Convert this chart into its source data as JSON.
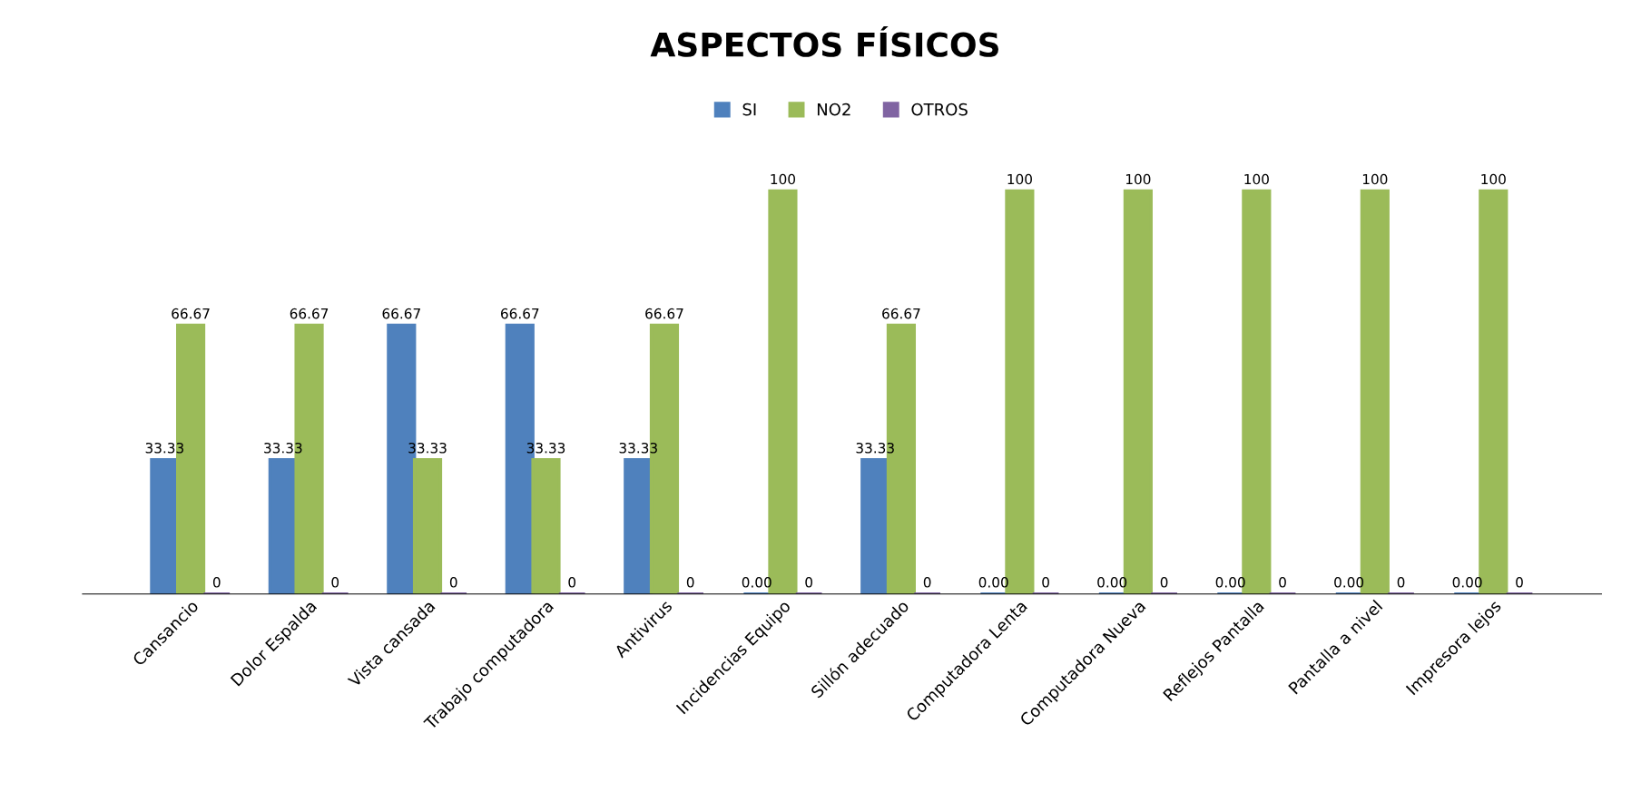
{
  "chart_data": {
    "type": "bar",
    "title": "ASPECTOS FÍSICOS",
    "categories": [
      "Cansancio",
      "Dolor Espalda",
      "Vista cansada",
      "Trabajo computadora",
      "Antivirus",
      "Incidencias Equipo",
      "Sillón adecuado",
      "Computadora Lenta",
      "Computadora Nueva",
      "Reflejos Pantalla",
      "Pantalla a nivel",
      "Impresora lejos"
    ],
    "series": [
      {
        "name": "SI",
        "color": "#4f81bd",
        "values": [
          33.33,
          33.33,
          66.67,
          66.67,
          33.33,
          0,
          33.33,
          0,
          0,
          0,
          0,
          0
        ],
        "value_labels": [
          "33.33",
          "33.33",
          "66.67",
          "66.67",
          "33.33",
          "0.00",
          "33.33",
          "0.00",
          "0.00",
          "0.00",
          "0.00",
          "0.00"
        ]
      },
      {
        "name": "NO2",
        "color": "#9bbb59",
        "values": [
          66.67,
          66.67,
          33.33,
          33.33,
          66.67,
          100,
          66.67,
          100,
          100,
          100,
          100,
          100
        ],
        "value_labels": [
          "66.67",
          "66.67",
          "33.33",
          "33.33",
          "66.67",
          "100",
          "66.67",
          "100",
          "100",
          "100",
          "100",
          "100"
        ]
      },
      {
        "name": "OTROS",
        "color": "#8064a2",
        "values": [
          0,
          0,
          0,
          0,
          0,
          0,
          0,
          0,
          0,
          0,
          0,
          0
        ],
        "value_labels": [
          "0",
          "0",
          "0",
          "0",
          "0",
          "0",
          "0",
          "0",
          "0",
          "0",
          "0",
          "0"
        ]
      }
    ],
    "legend": "top",
    "grid": false,
    "tick_labels": "x"
  }
}
